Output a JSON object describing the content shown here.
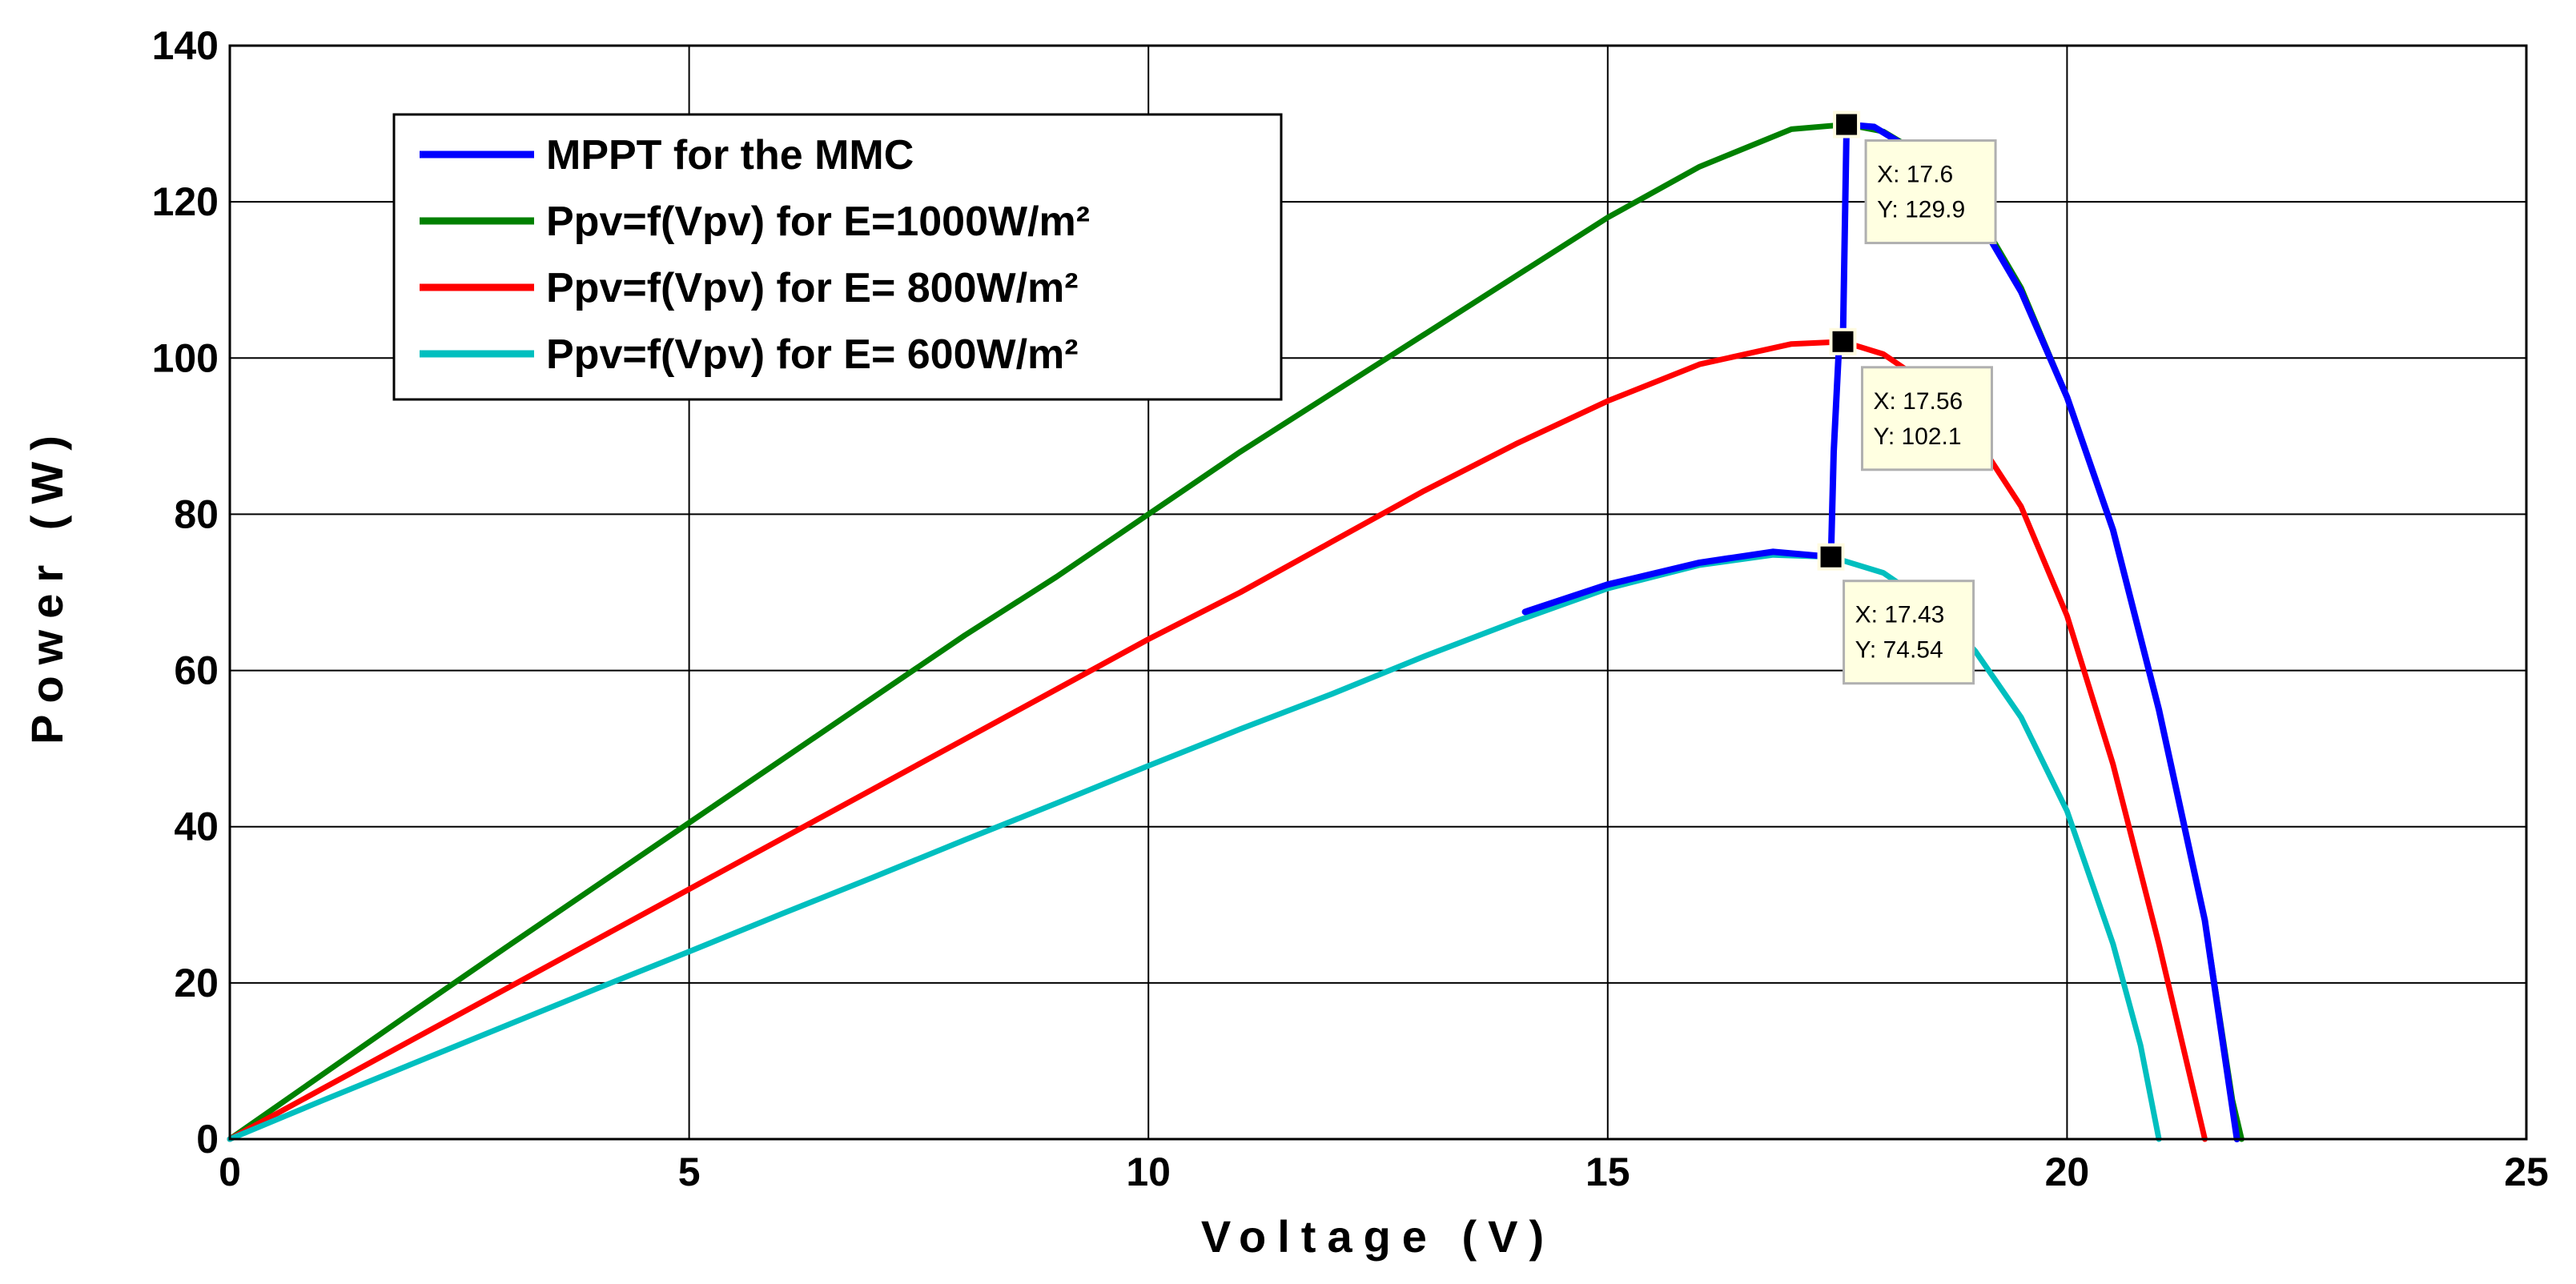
{
  "chart_data": {
    "type": "line",
    "title": "",
    "xlabel": "Voltage (V)",
    "ylabel": "Power (W)",
    "xlim": [
      0,
      25
    ],
    "ylim": [
      0,
      140
    ],
    "xticks": [
      0,
      5,
      10,
      15,
      20,
      25
    ],
    "yticks": [
      0,
      20,
      40,
      60,
      80,
      100,
      120,
      140
    ],
    "xtick_labels": [
      "0",
      "5",
      "10",
      "15",
      "20",
      "25"
    ],
    "ytick_labels": [
      "0",
      "20",
      "40",
      "60",
      "80",
      "100",
      "120",
      "140"
    ],
    "grid": true,
    "legend_position": "top-left",
    "series": [
      {
        "name": "MPPT for the MMC",
        "color": "#0000ff",
        "points": [
          [
            14.1,
            67.5
          ],
          [
            15.0,
            71.0
          ],
          [
            16.0,
            73.8
          ],
          [
            16.8,
            75.2
          ],
          [
            17.43,
            74.54
          ],
          [
            17.46,
            88.0
          ],
          [
            17.52,
            102.1
          ],
          [
            17.56,
            102.1
          ],
          [
            17.58,
            116.0
          ],
          [
            17.6,
            129.9
          ],
          [
            17.9,
            129.6
          ],
          [
            18.5,
            125.3
          ],
          [
            19.0,
            118.5
          ],
          [
            19.5,
            108.5
          ],
          [
            20.0,
            95.0
          ],
          [
            20.5,
            78.0
          ],
          [
            21.0,
            55.0
          ],
          [
            21.5,
            28.0
          ],
          [
            21.85,
            0
          ]
        ]
      },
      {
        "name": "Ppv=f(Vpv)  for E=1000W/m²",
        "color": "#008000",
        "points": [
          [
            0,
            0
          ],
          [
            1,
            8.2
          ],
          [
            2,
            16.4
          ],
          [
            3,
            24.5
          ],
          [
            4,
            32.5
          ],
          [
            5,
            40.5
          ],
          [
            6,
            48.5
          ],
          [
            7,
            56.5
          ],
          [
            8,
            64.5
          ],
          [
            9,
            72.0
          ],
          [
            10,
            80.0
          ],
          [
            11,
            88.0
          ],
          [
            12,
            95.5
          ],
          [
            13,
            103.0
          ],
          [
            14,
            110.5
          ],
          [
            15,
            118.0
          ],
          [
            16,
            124.5
          ],
          [
            17,
            129.3
          ],
          [
            17.6,
            129.9
          ],
          [
            18,
            129.0
          ],
          [
            18.5,
            125.5
          ],
          [
            19,
            119.0
          ],
          [
            19.5,
            109.0
          ],
          [
            20,
            95.0
          ],
          [
            20.5,
            78.0
          ],
          [
            21,
            55.0
          ],
          [
            21.5,
            28.0
          ],
          [
            21.8,
            5.0
          ],
          [
            21.9,
            0
          ]
        ]
      },
      {
        "name": "Ppv=f(Vpv) for E= 800W/m²",
        "color": "#ff0000",
        "points": [
          [
            0,
            0
          ],
          [
            1,
            6.4
          ],
          [
            2,
            12.8
          ],
          [
            3,
            19.2
          ],
          [
            4,
            25.6
          ],
          [
            5,
            32.0
          ],
          [
            6,
            38.4
          ],
          [
            7,
            44.8
          ],
          [
            8,
            51.2
          ],
          [
            9,
            57.6
          ],
          [
            10,
            64.0
          ],
          [
            11,
            70.0
          ],
          [
            12,
            76.5
          ],
          [
            13,
            83.0
          ],
          [
            14,
            89.0
          ],
          [
            15,
            94.5
          ],
          [
            16,
            99.2
          ],
          [
            17,
            101.8
          ],
          [
            17.56,
            102.1
          ],
          [
            18,
            100.5
          ],
          [
            18.5,
            96.5
          ],
          [
            19,
            90.0
          ],
          [
            19.5,
            81.0
          ],
          [
            20,
            67.0
          ],
          [
            20.5,
            48.0
          ],
          [
            21,
            25.0
          ],
          [
            21.3,
            10.0
          ],
          [
            21.5,
            0
          ]
        ]
      },
      {
        "name": "Ppv=f(Vpv) for E= 600W/m²",
        "color": "#00bfbf",
        "points": [
          [
            0,
            0
          ],
          [
            1,
            4.9
          ],
          [
            2,
            9.7
          ],
          [
            3,
            14.5
          ],
          [
            4,
            19.3
          ],
          [
            5,
            24.0
          ],
          [
            6,
            28.8
          ],
          [
            7,
            33.5
          ],
          [
            8,
            38.3
          ],
          [
            9,
            43.0
          ],
          [
            10,
            47.8
          ],
          [
            11,
            52.5
          ],
          [
            12,
            57.0
          ],
          [
            13,
            61.8
          ],
          [
            14,
            66.3
          ],
          [
            15,
            70.5
          ],
          [
            16,
            73.5
          ],
          [
            16.8,
            74.8
          ],
          [
            17.43,
            74.54
          ],
          [
            18,
            72.5
          ],
          [
            18.5,
            68.5
          ],
          [
            19,
            62.5
          ],
          [
            19.5,
            54.0
          ],
          [
            20,
            42.0
          ],
          [
            20.5,
            25.0
          ],
          [
            20.8,
            12.0
          ],
          [
            21.0,
            0
          ]
        ]
      }
    ],
    "annotations": [
      {
        "x_label": "X: 17.6",
        "y_label": "Y: 129.9",
        "x": 17.6,
        "y": 129.9
      },
      {
        "x_label": "X: 17.56",
        "y_label": "Y: 102.1",
        "x": 17.56,
        "y": 102.1
      },
      {
        "x_label": "X: 17.43",
        "y_label": "Y: 74.54",
        "x": 17.43,
        "y": 74.54
      }
    ]
  }
}
